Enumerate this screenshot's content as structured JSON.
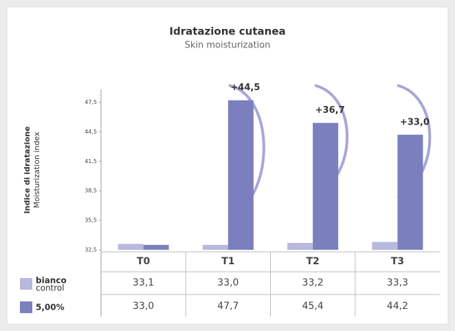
{
  "chart_data": {
    "type": "bar",
    "title": "Idratazione cutanea",
    "subtitle": "Skin moisturization",
    "y_label": "Indice di idratazione",
    "y_label_en": "Moisturization index",
    "categories": [
      "T0",
      "T1",
      "T2",
      "T3"
    ],
    "series": [
      {
        "name": "bianco",
        "name_en": "control",
        "color": "#b9b9dd",
        "values": [
          33.1,
          33.0,
          33.2,
          33.3
        ],
        "value_labels": [
          "33,1",
          "33,0",
          "33,2",
          "33,3"
        ]
      },
      {
        "name": "5,00%",
        "color": "#7b7fbe",
        "values": [
          33.0,
          47.7,
          45.4,
          44.2
        ],
        "value_labels": [
          "33,0",
          "47,7",
          "45,4",
          "44,2"
        ]
      }
    ],
    "annotations": [
      null,
      "+44,5",
      "+36,7",
      "+33,0"
    ],
    "ylim": [
      32.5,
      48.8
    ],
    "yticks": [
      {
        "value": 32.5,
        "label": "32,5"
      },
      {
        "value": 35.5,
        "label": "35,5"
      },
      {
        "value": 38.5,
        "label": "38,5"
      },
      {
        "value": 41.5,
        "label": "41,5"
      },
      {
        "value": 44.5,
        "label": "44,5"
      },
      {
        "value": 47.5,
        "label": "47,5"
      }
    ]
  }
}
